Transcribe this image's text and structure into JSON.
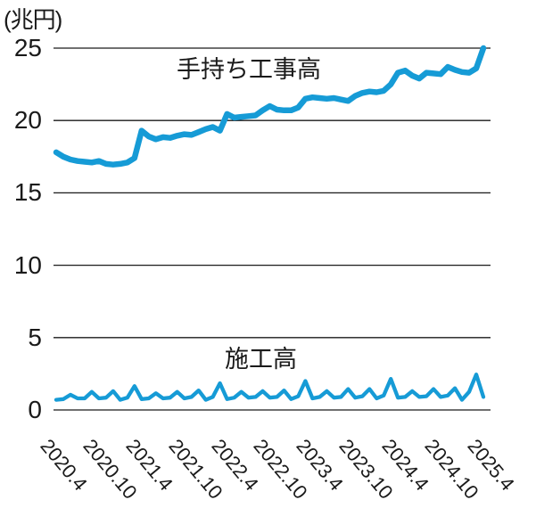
{
  "colors": {
    "background": "#ffffff",
    "grid": "#1a1a1a",
    "text": "#1a1a1a",
    "line_blue": "#169bd6"
  },
  "chart_data": {
    "type": "line",
    "unit_label": "(兆円)",
    "ylim": [
      0,
      25
    ],
    "grid": "horizontal",
    "y_ticks": [
      0,
      5,
      10,
      15,
      20,
      25
    ],
    "y_tick_labels": [
      "0",
      "5",
      "10",
      "15",
      "20",
      "25"
    ],
    "x_tick_labels": [
      "2020.4",
      "2020.10",
      "2021.4",
      "2021.10",
      "2022.4",
      "2022.10",
      "2023.4",
      "2023.10",
      "2024.4",
      "2024.10",
      "2025.4"
    ],
    "x_months": [
      "2020.4",
      "2020.5",
      "2020.6",
      "2020.7",
      "2020.8",
      "2020.9",
      "2020.10",
      "2020.11",
      "2020.12",
      "2021.1",
      "2021.2",
      "2021.3",
      "2021.4",
      "2021.5",
      "2021.6",
      "2021.7",
      "2021.8",
      "2021.9",
      "2021.10",
      "2021.11",
      "2021.12",
      "2022.1",
      "2022.2",
      "2022.3",
      "2022.4",
      "2022.5",
      "2022.6",
      "2022.7",
      "2022.8",
      "2022.9",
      "2022.10",
      "2022.11",
      "2022.12",
      "2023.1",
      "2023.2",
      "2023.3",
      "2023.4",
      "2023.5",
      "2023.6",
      "2023.7",
      "2023.8",
      "2023.9",
      "2023.10",
      "2023.11",
      "2023.12",
      "2024.1",
      "2024.2",
      "2024.3",
      "2024.4",
      "2024.5",
      "2024.6",
      "2024.7",
      "2024.8",
      "2024.9",
      "2024.10",
      "2024.11",
      "2024.12",
      "2025.1",
      "2025.2",
      "2025.3",
      "2025.4"
    ],
    "series": [
      {
        "name": "手持ち工事高",
        "color": "#169bd6",
        "values": [
          17.8,
          17.5,
          17.3,
          17.2,
          17.15,
          17.1,
          17.2,
          17.0,
          16.95,
          17.0,
          17.1,
          17.4,
          19.3,
          18.9,
          18.7,
          18.85,
          18.8,
          18.95,
          19.05,
          19.0,
          19.2,
          19.4,
          19.55,
          19.3,
          20.45,
          20.2,
          20.25,
          20.3,
          20.35,
          20.7,
          21.0,
          20.75,
          20.7,
          20.7,
          20.9,
          21.5,
          21.6,
          21.55,
          21.5,
          21.55,
          21.45,
          21.35,
          21.7,
          21.9,
          22.0,
          21.95,
          22.05,
          22.5,
          23.3,
          23.45,
          23.1,
          22.9,
          23.3,
          23.25,
          23.2,
          23.7,
          23.5,
          23.35,
          23.3,
          23.6,
          25.0
        ]
      },
      {
        "name": "施工高",
        "color": "#169bd6",
        "values": [
          0.7,
          0.75,
          1.05,
          0.8,
          0.8,
          1.25,
          0.8,
          0.85,
          1.3,
          0.7,
          0.85,
          1.65,
          0.75,
          0.8,
          1.15,
          0.8,
          0.85,
          1.25,
          0.8,
          0.9,
          1.35,
          0.7,
          0.9,
          1.85,
          0.75,
          0.85,
          1.25,
          0.85,
          0.9,
          1.3,
          0.85,
          0.9,
          1.35,
          0.75,
          0.95,
          2.0,
          0.8,
          0.9,
          1.3,
          0.85,
          0.9,
          1.45,
          0.85,
          0.95,
          1.45,
          0.8,
          1.0,
          2.15,
          0.85,
          0.9,
          1.3,
          0.9,
          0.95,
          1.45,
          0.9,
          1.0,
          1.5,
          0.7,
          1.25,
          2.45,
          0.9
        ]
      }
    ]
  }
}
